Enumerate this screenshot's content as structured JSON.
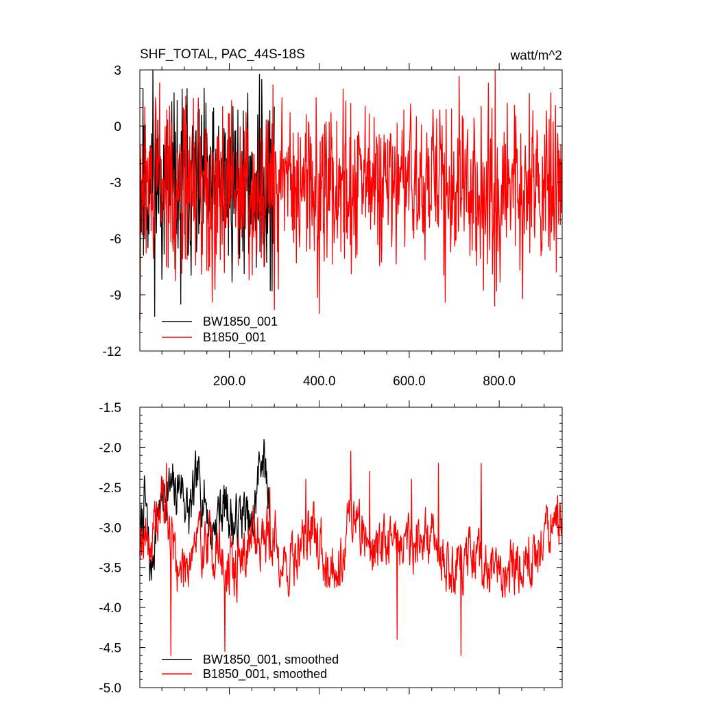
{
  "chart_data": [
    {
      "type": "line",
      "title": "SHF_TOTAL, PAC_44S-18S",
      "units": "watt/m^2",
      "xlim": [
        1,
        940
      ],
      "ylim": [
        -12,
        3
      ],
      "xticks": [
        200,
        400,
        600,
        800
      ],
      "xtick_labels": [
        "200.0",
        "400.0",
        "600.0",
        "800.0"
      ],
      "yticks": [
        3,
        0,
        -3,
        -6,
        -9,
        -12
      ],
      "ytick_labels": [
        "3",
        "0",
        "-3",
        "-6",
        "-9",
        "-12"
      ],
      "grid": false,
      "legend": "bottom-left",
      "series": [
        {
          "name": "BW1850_001",
          "color": "#000000",
          "x_range": [
            1,
            300
          ],
          "mean": -3.2,
          "amplitude": 2.3,
          "seed": 11,
          "points": [
            [
              1,
              -10.3
            ],
            [
              8,
              2.0
            ],
            [
              30,
              3.0
            ],
            [
              92,
              -9.5
            ],
            [
              272,
              2.5
            ],
            [
              295,
              -8.8
            ]
          ]
        },
        {
          "name": "B1850_001",
          "color": "#ff0000",
          "x_range": [
            1,
            940
          ],
          "mean": -3.2,
          "amplitude": 2.2,
          "seed": 29,
          "points": [
            [
              1,
              -10.4
            ],
            [
              45,
              2.3
            ],
            [
              162,
              -9.4
            ],
            [
              297,
              2.2
            ],
            [
              300,
              -9.8
            ],
            [
              400,
              -10.0
            ],
            [
              680,
              -9.4
            ],
            [
              776,
              2.3
            ],
            [
              790,
              -9.6
            ],
            [
              852,
              -9.2
            ],
            [
              925,
              1.1
            ]
          ]
        }
      ]
    },
    {
      "type": "line",
      "title": "",
      "xlim": [
        1,
        940
      ],
      "ylim": [
        -5.0,
        -1.5
      ],
      "xticks": [
        200,
        400,
        600,
        800
      ],
      "xtick_labels": [],
      "yticks": [
        -1.5,
        -2.0,
        -2.5,
        -3.0,
        -3.5,
        -4.0,
        -4.5,
        -5.0
      ],
      "ytick_labels": [
        "-1.5",
        "-2.0",
        "-2.5",
        "-3.0",
        "-3.5",
        "-4.0",
        "-4.5",
        "-5.0"
      ],
      "grid": false,
      "legend": "bottom-left",
      "series": [
        {
          "name": "BW1850_001, smoothed",
          "color": "#000000",
          "x_range": [
            1,
            290
          ],
          "anchors": [
            [
              1,
              -3.2
            ],
            [
              12,
              -2.6
            ],
            [
              25,
              -3.6
            ],
            [
              40,
              -2.8
            ],
            [
              60,
              -2.5
            ],
            [
              80,
              -2.6
            ],
            [
              92,
              -2.4
            ],
            [
              110,
              -2.9
            ],
            [
              130,
              -2.4
            ],
            [
              150,
              -2.7
            ],
            [
              160,
              -3.1
            ],
            [
              175,
              -2.8
            ],
            [
              195,
              -2.7
            ],
            [
              210,
              -3.0
            ],
            [
              230,
              -2.8
            ],
            [
              250,
              -3.1
            ],
            [
              272,
              -2.0
            ],
            [
              285,
              -2.5
            ],
            [
              290,
              -2.6
            ]
          ],
          "noise": 0.28,
          "seed": 7
        },
        {
          "name": "B1850_001, smoothed",
          "color": "#ff0000",
          "x_range": [
            1,
            940
          ],
          "anchors": [
            [
              1,
              -3.0
            ],
            [
              30,
              -3.2
            ],
            [
              50,
              -2.6
            ],
            [
              70,
              -3.1
            ],
            [
              90,
              -3.6
            ],
            [
              120,
              -3.2
            ],
            [
              150,
              -3.2
            ],
            [
              180,
              -3.3
            ],
            [
              190,
              -3.6
            ],
            [
              215,
              -3.5
            ],
            [
              240,
              -3.2
            ],
            [
              260,
              -3.1
            ],
            [
              300,
              -3.1
            ],
            [
              320,
              -3.5
            ],
            [
              350,
              -3.4
            ],
            [
              375,
              -3.0
            ],
            [
              395,
              -3.2
            ],
            [
              420,
              -3.4
            ],
            [
              440,
              -3.5
            ],
            [
              470,
              -2.8
            ],
            [
              500,
              -3.1
            ],
            [
              530,
              -3.3
            ],
            [
              560,
              -3.1
            ],
            [
              590,
              -3.2
            ],
            [
              620,
              -3.1
            ],
            [
              660,
              -3.2
            ],
            [
              690,
              -3.5
            ],
            [
              720,
              -3.4
            ],
            [
              760,
              -3.5
            ],
            [
              800,
              -3.6
            ],
            [
              840,
              -3.4
            ],
            [
              880,
              -3.4
            ],
            [
              910,
              -3.0
            ],
            [
              940,
              -3.1
            ]
          ],
          "noise": 0.3,
          "seed": 19,
          "points": [
            [
              60,
              -2.2
            ],
            [
              70,
              -4.6
            ],
            [
              190,
              -4.55
            ],
            [
              290,
              -2.5
            ],
            [
              370,
              -2.4
            ],
            [
              470,
              -2.05
            ],
            [
              512,
              -2.3
            ],
            [
              573,
              -4.4
            ],
            [
              605,
              -2.4
            ],
            [
              665,
              -2.2
            ],
            [
              715,
              -4.6
            ],
            [
              760,
              -2.2
            ],
            [
              935,
              -2.7
            ]
          ]
        }
      ]
    }
  ]
}
